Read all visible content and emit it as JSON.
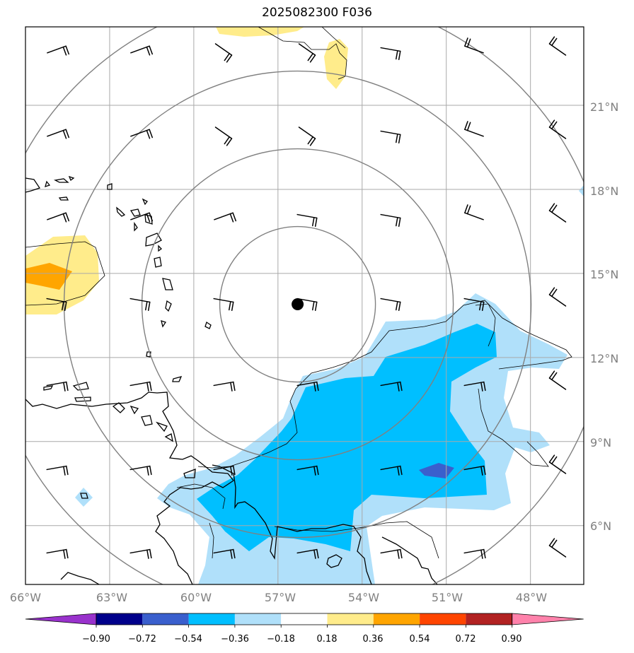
{
  "title": "2025082300 F036",
  "lon_labels": [
    "66°W",
    "63°W",
    "60°W",
    "57°W",
    "54°W",
    "51°W",
    "48°W"
  ],
  "lat_labels": [
    "21°N",
    "18°N",
    "15°N",
    "12°N",
    "9°N",
    "6°N"
  ],
  "colorbar": {
    "labels": [
      "−0.90",
      "−0.72",
      "−0.54",
      "−0.36",
      "−0.18",
      "0.18",
      "0.36",
      "0.54",
      "0.72",
      "0.90"
    ],
    "colors": [
      "#9932cc",
      "#00008b",
      "#3a5fcd",
      "#00bfff",
      "#b0e0fa",
      "#ffffff",
      "#ffec8b",
      "#ffa500",
      "#ff4500",
      "#b22222",
      "#ff82ab"
    ]
  },
  "center_marker": {
    "lon": -56.3,
    "lat": 13.9
  },
  "map": {
    "extent": {
      "lon_min": -66,
      "lon_max": -46.1,
      "lat_min": 3.9,
      "lat_max": 23.8
    },
    "shading": {
      "positive_levels": [
        "0.18–0.36",
        "0.36–0.54"
      ],
      "negative_levels": [
        "−0.36–−0.18",
        "−0.54–−0.36",
        "−0.72–−0.54"
      ]
    },
    "range_rings": 4,
    "wind_barbs": true
  }
}
